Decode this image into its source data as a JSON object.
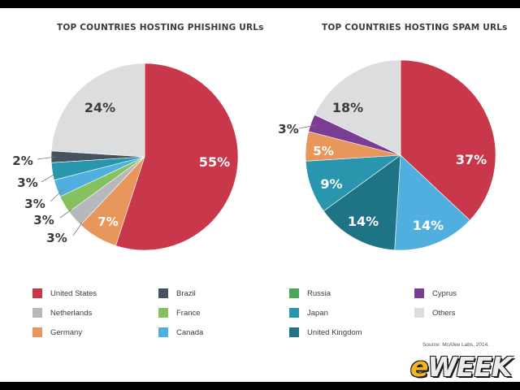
{
  "chart_data": [
    {
      "type": "pie",
      "title": "TOP COUNTRIES HOSTING PHISHING URLs",
      "slices": [
        {
          "name": "United States",
          "value": 55,
          "label": "55%",
          "color": "#c8384a"
        },
        {
          "name": "Germany",
          "value": 7,
          "label": "7%",
          "color": "#e8975c"
        },
        {
          "name": "Netherlands",
          "value": 3,
          "label": "3%",
          "color": "#b5b9bc"
        },
        {
          "name": "France",
          "value": 3,
          "label": "3%",
          "color": "#86c160"
        },
        {
          "name": "Canada",
          "value": 3,
          "label": "3%",
          "color": "#51afe0"
        },
        {
          "name": "Japan",
          "value": 3,
          "label": "3%",
          "color": "#2a96ae"
        },
        {
          "name": "Brazil",
          "value": 2,
          "label": "2%",
          "color": "#46535e"
        },
        {
          "name": "Others",
          "value": 24,
          "label": "24%",
          "color": "#dcdddf"
        }
      ]
    },
    {
      "type": "pie",
      "title": "TOP COUNTRIES HOSTING SPAM URLs",
      "slices": [
        {
          "name": "United States",
          "value": 37,
          "label": "37%",
          "color": "#c8384a"
        },
        {
          "name": "Canada",
          "value": 14,
          "label": "14%",
          "color": "#51afe0"
        },
        {
          "name": "United Kingdom",
          "value": 14,
          "label": "14%",
          "color": "#1e7384"
        },
        {
          "name": "Japan",
          "value": 9,
          "label": "9%",
          "color": "#2a96ae"
        },
        {
          "name": "Germany",
          "value": 5,
          "label": "5%",
          "color": "#e8975c"
        },
        {
          "name": "Cyprus",
          "value": 3,
          "label": "3%",
          "color": "#7b3c93"
        },
        {
          "name": "Others",
          "value": 18,
          "label": "18%",
          "color": "#dcdddf"
        }
      ]
    }
  ],
  "legend": [
    {
      "label": "United States",
      "color": "#c8384a"
    },
    {
      "label": "Netherlands",
      "color": "#b5b9bc"
    },
    {
      "label": "Germany",
      "color": "#e8975c"
    },
    {
      "label": "Brazil",
      "color": "#46535e"
    },
    {
      "label": "France",
      "color": "#86c160"
    },
    {
      "label": "Canada",
      "color": "#51afe0"
    },
    {
      "label": "Russia",
      "color": "#4aa55a"
    },
    {
      "label": "Japan",
      "color": "#2a96ae"
    },
    {
      "label": "United Kingdom",
      "color": "#1e7384"
    },
    {
      "label": "Cyprus",
      "color": "#7b3c93"
    },
    {
      "label": "Others",
      "color": "#dcdddf"
    }
  ],
  "source": "Source: McAfee Labs, 2014.",
  "logo": {
    "prefix": "e",
    "rest": "WEEK"
  }
}
